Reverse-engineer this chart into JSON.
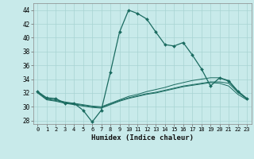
{
  "xlabel": "Humidex (Indice chaleur)",
  "background_color": "#c8eaea",
  "grid_color": "#a8d4d2",
  "line_color": "#1a6b60",
  "xlim": [
    -0.5,
    23.5
  ],
  "ylim": [
    27.5,
    45.0
  ],
  "xticks": [
    0,
    1,
    2,
    3,
    4,
    5,
    6,
    7,
    8,
    9,
    10,
    11,
    12,
    13,
    14,
    15,
    16,
    17,
    18,
    19,
    20,
    21,
    22,
    23
  ],
  "yticks": [
    28,
    30,
    32,
    34,
    36,
    38,
    40,
    42,
    44
  ],
  "main_line": [
    32.2,
    31.3,
    31.2,
    30.5,
    30.5,
    29.5,
    27.8,
    29.5,
    35.0,
    40.8,
    44.0,
    43.5,
    42.7,
    40.8,
    39.0,
    38.8,
    39.3,
    37.5,
    35.5,
    33.0,
    34.2,
    33.7,
    32.2,
    31.2
  ],
  "line2": [
    32.2,
    31.2,
    31.0,
    30.7,
    30.5,
    30.3,
    30.1,
    30.0,
    30.5,
    31.0,
    31.5,
    31.8,
    32.2,
    32.5,
    32.8,
    33.2,
    33.5,
    33.8,
    34.0,
    34.2,
    34.2,
    33.8,
    32.3,
    31.2
  ],
  "line3": [
    32.0,
    31.0,
    30.8,
    30.5,
    30.3,
    30.1,
    29.9,
    29.8,
    30.3,
    30.8,
    31.2,
    31.5,
    31.8,
    32.0,
    32.3,
    32.6,
    32.9,
    33.1,
    33.3,
    33.5,
    33.4,
    33.0,
    31.8,
    31.0
  ],
  "line4": [
    32.1,
    31.1,
    30.9,
    30.6,
    30.4,
    30.2,
    30.0,
    29.9,
    30.4,
    30.9,
    31.3,
    31.6,
    31.9,
    32.1,
    32.4,
    32.7,
    33.0,
    33.2,
    33.4,
    33.6,
    33.6,
    33.4,
    32.1,
    31.1
  ],
  "font_size_x": 5.0,
  "font_size_y": 5.5,
  "xlabel_fontsize": 6.5
}
